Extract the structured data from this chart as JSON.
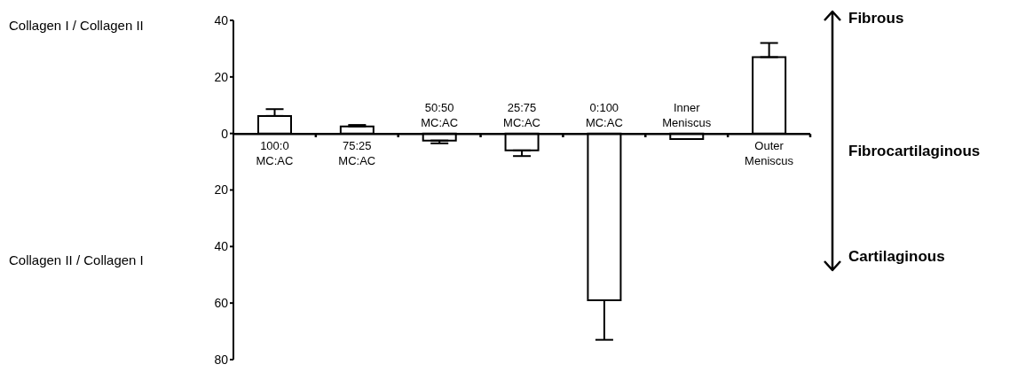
{
  "chart_data": {
    "type": "bar",
    "categories": [
      "100:0 MC:AC",
      "75:25 MC:AC",
      "50:50 MC:AC",
      "25:75 MC:AC",
      "0:100 MC:AC",
      "Inner Meniscus",
      "Outer Meniscus"
    ],
    "values": [
      6.2,
      2.5,
      -2.5,
      -6,
      -59,
      -2,
      27
    ],
    "errors": [
      [
        6.2,
        8.6
      ],
      [
        2.5,
        3
      ],
      [
        -3.5,
        -2.5
      ],
      [
        -8,
        -6
      ],
      [
        -73,
        -59
      ],
      null,
      [
        27,
        32
      ]
    ],
    "color": "#ffffff",
    "ylim": [
      -80,
      40
    ],
    "yticks": [
      40,
      20,
      0,
      {
        "value": -20,
        "label": "20"
      },
      {
        "value": -40,
        "label": "40"
      },
      {
        "value": -60,
        "label": "60"
      },
      {
        "value": -80,
        "label": "80"
      }
    ],
    "grid": false,
    "legend": false,
    "annotations": [
      "Collagen I / Collagen II",
      "Collagen II / Collagen I",
      "Fibrous",
      "Fibrocartilaginous",
      "Cartilaginous"
    ]
  }
}
